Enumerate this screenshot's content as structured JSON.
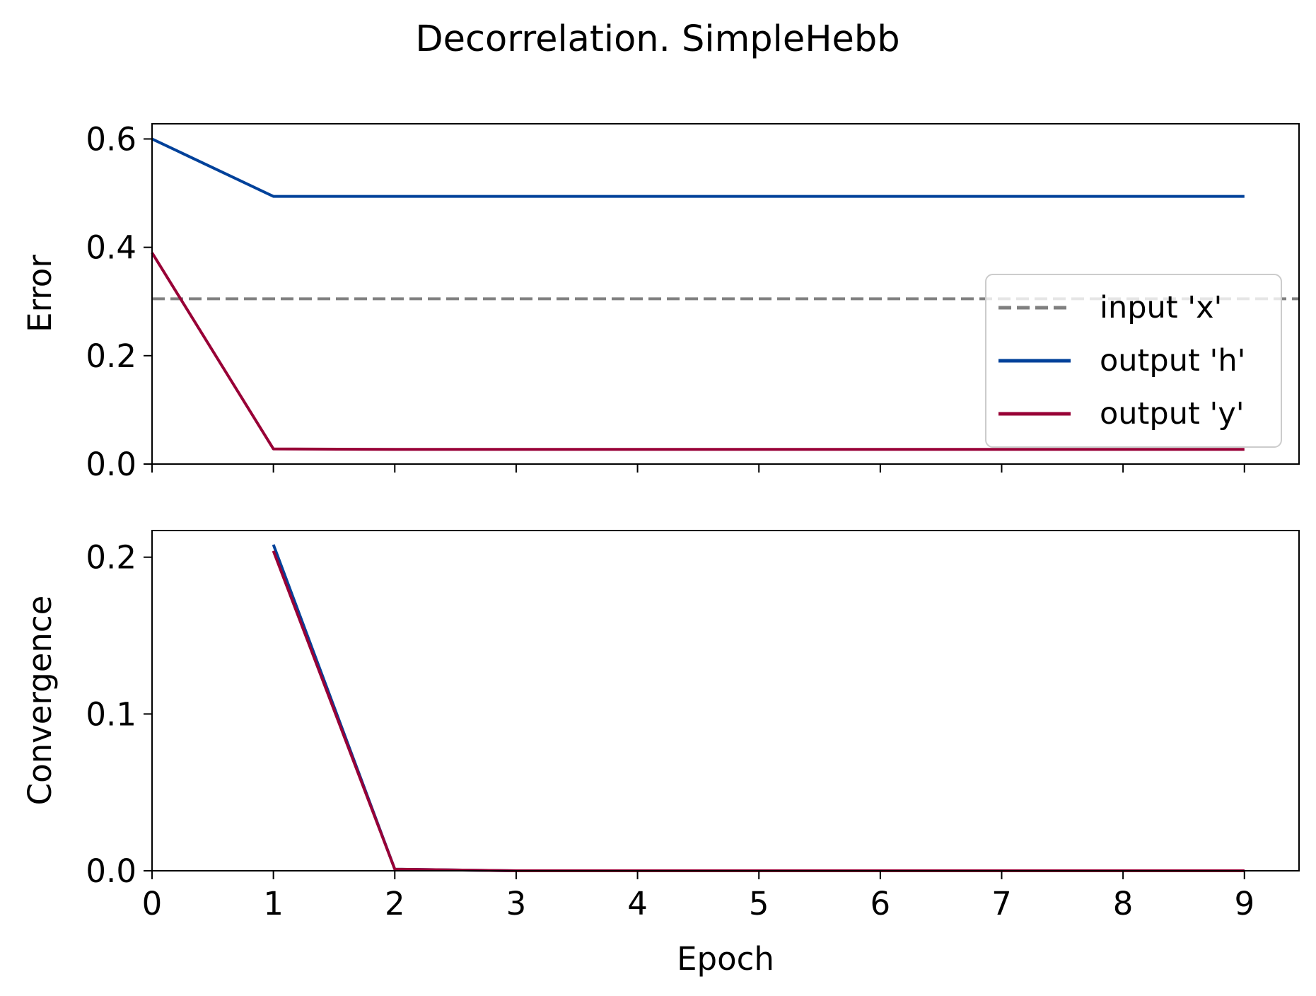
{
  "figure": {
    "title": "Decorrelation. SimpleHebb"
  },
  "colors": {
    "input_x": "#808080",
    "output_h": "#00419a",
    "output_y": "#980036"
  },
  "chart_data": [
    {
      "type": "line",
      "title": "",
      "xlabel": "",
      "ylabel": "Error",
      "xlim": [
        0,
        9.45
      ],
      "ylim": [
        0,
        0.628
      ],
      "x": [
        0,
        1,
        2,
        3,
        4,
        5,
        6,
        7,
        8,
        9
      ],
      "x_ticks": [
        0,
        1,
        2,
        3,
        4,
        5,
        6,
        7,
        8,
        9
      ],
      "x_tick_labels_visible": false,
      "y_ticks": [
        0.0,
        0.2,
        0.4,
        0.6
      ],
      "y_tick_labels": [
        "0.0",
        "0.2",
        "0.4",
        "0.6"
      ],
      "legend": {
        "placement": "right",
        "entries": [
          "input 'x'",
          "output 'h'",
          "output 'y'"
        ]
      },
      "series": [
        {
          "name": "input 'x'",
          "style": "dashed",
          "color": "#808080",
          "hline": 0.305
        },
        {
          "name": "output 'h'",
          "style": "solid",
          "color": "#00419a",
          "values": [
            0.6,
            0.494,
            0.494,
            0.494,
            0.494,
            0.494,
            0.494,
            0.494,
            0.494,
            0.494
          ]
        },
        {
          "name": "output 'y'",
          "style": "solid",
          "color": "#980036",
          "values": [
            0.39,
            0.028,
            0.027,
            0.027,
            0.027,
            0.027,
            0.027,
            0.027,
            0.027,
            0.027
          ]
        }
      ]
    },
    {
      "type": "line",
      "title": "",
      "xlabel": "Epoch",
      "ylabel": "Convergence",
      "xlim": [
        0,
        9.45
      ],
      "ylim": [
        0,
        0.217
      ],
      "x": [
        0,
        1,
        2,
        3,
        4,
        5,
        6,
        7,
        8,
        9
      ],
      "x_ticks": [
        0,
        1,
        2,
        3,
        4,
        5,
        6,
        7,
        8,
        9
      ],
      "x_tick_labels": [
        "0",
        "1",
        "2",
        "3",
        "4",
        "5",
        "6",
        "7",
        "8",
        "9"
      ],
      "y_ticks": [
        0.0,
        0.1,
        0.2
      ],
      "y_tick_labels": [
        "0.0",
        "0.1",
        "0.2"
      ],
      "series": [
        {
          "name": "output 'h'",
          "style": "solid",
          "color": "#00419a",
          "x": [
            1,
            2,
            3,
            4,
            5,
            6,
            7,
            8,
            9
          ],
          "values": [
            0.208,
            0.001,
            0.0,
            0.0,
            0.0,
            0.0,
            0.0,
            0.0,
            0.0
          ]
        },
        {
          "name": "output 'y'",
          "style": "solid",
          "color": "#980036",
          "x": [
            1,
            2,
            3,
            4,
            5,
            6,
            7,
            8,
            9
          ],
          "values": [
            0.204,
            0.001,
            0.0,
            0.0,
            0.0,
            0.0,
            0.0,
            0.0,
            0.0
          ]
        }
      ]
    }
  ]
}
